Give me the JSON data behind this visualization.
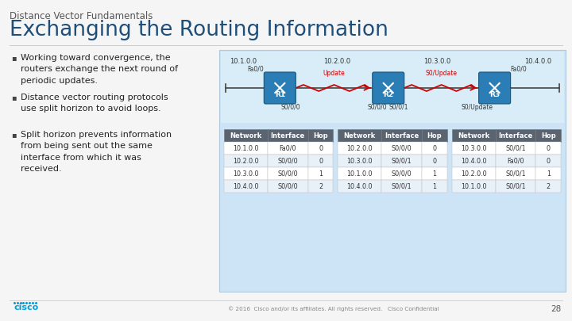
{
  "title_small": "Distance Vector Fundamentals",
  "title_large": "Exchanging the Routing Information",
  "bullets": [
    "Working toward convergence, the\nrouters exchange the next round of\nperiodic updates.",
    "Distance vector routing protocols\nuse split horizon to avoid loops.",
    "Split horizon prevents information\nfrom being sent out the same\ninterface from which it was\nreceived."
  ],
  "bg_color": "#f5f5f5",
  "title_small_color": "#555555",
  "title_large_color": "#1f4e79",
  "bullet_color": "#222222",
  "diagram_bg_top": "#cce4f5",
  "diagram_bg_bottom": "#ddeef8",
  "network_labels": [
    "10.1.0.0",
    "10.2.0.0",
    "10.3.0.0",
    "10.4.0.0"
  ],
  "table_headers": [
    "Network",
    "Interface",
    "Hop"
  ],
  "table_header_color": "#5a6470",
  "table_row_color1": "#ffffff",
  "table_row_color2": "#e8f0f8",
  "tables": [
    {
      "rows": [
        [
          "10.1.0.0",
          "Fa0/0",
          "0"
        ],
        [
          "10.2.0.0",
          "S0/0/0",
          "0"
        ],
        [
          "10.3.0.0",
          "S0/0/0",
          "1"
        ],
        [
          "10.4.0.0",
          "S0/0/0",
          "2"
        ]
      ]
    },
    {
      "rows": [
        [
          "10.2.0.0",
          "S0/0/0",
          "0"
        ],
        [
          "10.3.0.0",
          "S0/0/1",
          "0"
        ],
        [
          "10.1.0.0",
          "S0/0/0",
          "1"
        ],
        [
          "10.4.0.0",
          "S0/0/1",
          "1"
        ]
      ]
    },
    {
      "rows": [
        [
          "10.3.0.0",
          "S0/0/1",
          "0"
        ],
        [
          "10.4.0.0",
          "Fa0/0",
          "0"
        ],
        [
          "10.2.0.0",
          "S0/0/1",
          "1"
        ],
        [
          "10.1.0.0",
          "S0/0/1",
          "2"
        ]
      ]
    }
  ],
  "footer_text": "© 2016  Cisco and/or its affiliates. All rights reserved.   Cisco Confidential",
  "page_num": "28",
  "cisco_logo_color": "#049fd9",
  "arrow_color": "#cc0000",
  "line_color": "#444444",
  "router_color": "#2a7db5",
  "update_label1": "Update",
  "update_label2": "S0/Update"
}
